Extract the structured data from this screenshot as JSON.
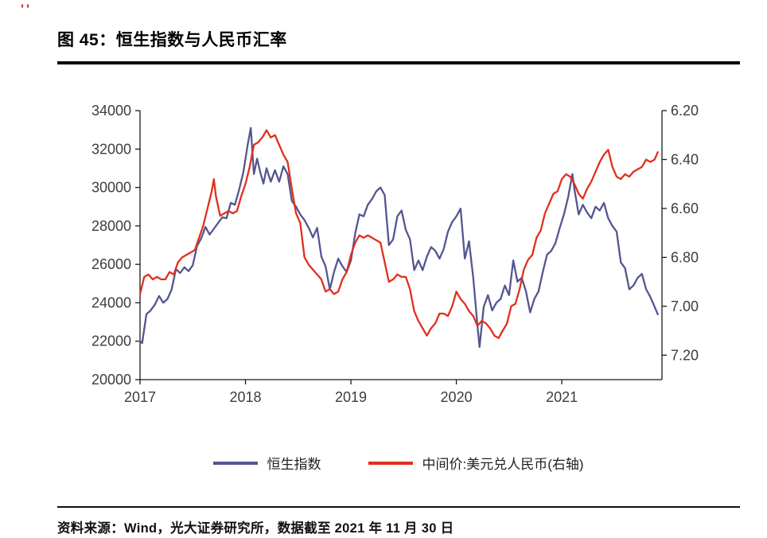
{
  "decor": {
    "top_marks": "''"
  },
  "title": "图 45：恒生指数与人民币汇率",
  "legend": {
    "series1": "恒生指数",
    "series2": "中间价:美元兑人民币(右轴)"
  },
  "source": "资料来源：Wind，光大证券研究所，数据截至 2021 年 11 月 30 日",
  "chart_data": {
    "type": "line",
    "title": "恒生指数与人民币汇率",
    "grid": false,
    "legend_position": "bottom-center",
    "style": {
      "axis_color": "#1a1a1a",
      "tick_text_color": "#3d3d3d"
    },
    "x_axis": {
      "range": [
        2017.0,
        2021.95
      ],
      "ticks": [
        2017,
        2018,
        2019,
        2020,
        2021
      ],
      "tick_labels": [
        "2017",
        "2018",
        "2019",
        "2020",
        "2021"
      ]
    },
    "y_left": {
      "label": "恒生指数",
      "range": [
        20000,
        34000
      ],
      "ticks": [
        20000,
        22000,
        24000,
        26000,
        28000,
        30000,
        32000,
        34000
      ],
      "tick_labels": [
        "20000",
        "22000",
        "24000",
        "26000",
        "28000",
        "30000",
        "32000",
        "34000"
      ]
    },
    "y_right": {
      "label": "中间价:美元兑人民币",
      "inverted": true,
      "range": [
        6.2,
        7.3
      ],
      "ticks": [
        6.2,
        6.4,
        6.6,
        6.8,
        7.0,
        7.2
      ],
      "tick_labels": [
        "6.20",
        "6.40",
        "6.60",
        "6.80",
        "7.00",
        "7.20"
      ]
    },
    "series": [
      {
        "name": "恒生指数",
        "data_name": "hsi-line-series",
        "axis": "left",
        "color": "#54568f",
        "points": [
          [
            2017.0,
            22000
          ],
          [
            2017.02,
            21900
          ],
          [
            2017.06,
            23400
          ],
          [
            2017.1,
            23600
          ],
          [
            2017.14,
            23900
          ],
          [
            2017.18,
            24350
          ],
          [
            2017.22,
            24000
          ],
          [
            2017.26,
            24200
          ],
          [
            2017.3,
            24700
          ],
          [
            2017.34,
            25750
          ],
          [
            2017.38,
            25550
          ],
          [
            2017.42,
            25850
          ],
          [
            2017.46,
            25650
          ],
          [
            2017.5,
            25950
          ],
          [
            2017.54,
            26950
          ],
          [
            2017.58,
            27350
          ],
          [
            2017.62,
            27950
          ],
          [
            2017.66,
            27550
          ],
          [
            2017.7,
            27850
          ],
          [
            2017.74,
            28150
          ],
          [
            2017.78,
            28450
          ],
          [
            2017.82,
            28400
          ],
          [
            2017.86,
            29200
          ],
          [
            2017.9,
            29100
          ],
          [
            2017.94,
            29900
          ],
          [
            2017.98,
            30800
          ],
          [
            2018.02,
            32200
          ],
          [
            2018.05,
            33100
          ],
          [
            2018.08,
            30700
          ],
          [
            2018.11,
            31500
          ],
          [
            2018.14,
            30800
          ],
          [
            2018.17,
            30200
          ],
          [
            2018.2,
            31000
          ],
          [
            2018.24,
            30300
          ],
          [
            2018.28,
            30900
          ],
          [
            2018.32,
            30300
          ],
          [
            2018.36,
            31100
          ],
          [
            2018.4,
            30700
          ],
          [
            2018.44,
            29300
          ],
          [
            2018.48,
            29000
          ],
          [
            2018.52,
            28600
          ],
          [
            2018.56,
            28300
          ],
          [
            2018.6,
            27900
          ],
          [
            2018.64,
            27400
          ],
          [
            2018.68,
            27900
          ],
          [
            2018.72,
            26400
          ],
          [
            2018.76,
            25900
          ],
          [
            2018.8,
            24700
          ],
          [
            2018.84,
            25600
          ],
          [
            2018.88,
            26300
          ],
          [
            2018.92,
            25900
          ],
          [
            2018.96,
            25600
          ],
          [
            2019.0,
            26200
          ],
          [
            2019.04,
            27600
          ],
          [
            2019.08,
            28600
          ],
          [
            2019.12,
            28500
          ],
          [
            2019.16,
            29100
          ],
          [
            2019.2,
            29400
          ],
          [
            2019.24,
            29800
          ],
          [
            2019.28,
            30000
          ],
          [
            2019.32,
            29600
          ],
          [
            2019.36,
            27000
          ],
          [
            2019.4,
            27300
          ],
          [
            2019.44,
            28500
          ],
          [
            2019.48,
            28800
          ],
          [
            2019.52,
            27800
          ],
          [
            2019.56,
            27300
          ],
          [
            2019.6,
            25700
          ],
          [
            2019.64,
            26200
          ],
          [
            2019.68,
            25700
          ],
          [
            2019.72,
            26400
          ],
          [
            2019.76,
            26900
          ],
          [
            2019.8,
            26700
          ],
          [
            2019.84,
            26300
          ],
          [
            2019.88,
            26800
          ],
          [
            2019.92,
            27700
          ],
          [
            2019.96,
            28200
          ],
          [
            2020.0,
            28500
          ],
          [
            2020.04,
            28900
          ],
          [
            2020.08,
            26300
          ],
          [
            2020.12,
            27200
          ],
          [
            2020.16,
            25300
          ],
          [
            2020.2,
            22800
          ],
          [
            2020.22,
            21700
          ],
          [
            2020.26,
            23800
          ],
          [
            2020.3,
            24400
          ],
          [
            2020.34,
            23600
          ],
          [
            2020.38,
            24000
          ],
          [
            2020.42,
            24200
          ],
          [
            2020.46,
            24900
          ],
          [
            2020.5,
            24400
          ],
          [
            2020.54,
            26200
          ],
          [
            2020.58,
            25100
          ],
          [
            2020.62,
            25300
          ],
          [
            2020.66,
            24600
          ],
          [
            2020.7,
            23500
          ],
          [
            2020.74,
            24200
          ],
          [
            2020.78,
            24600
          ],
          [
            2020.82,
            25600
          ],
          [
            2020.86,
            26500
          ],
          [
            2020.9,
            26700
          ],
          [
            2020.94,
            27100
          ],
          [
            2020.98,
            27900
          ],
          [
            2021.02,
            28600
          ],
          [
            2021.06,
            29500
          ],
          [
            2021.1,
            30700
          ],
          [
            2021.12,
            29900
          ],
          [
            2021.16,
            28600
          ],
          [
            2021.2,
            29100
          ],
          [
            2021.24,
            28700
          ],
          [
            2021.28,
            28400
          ],
          [
            2021.32,
            29000
          ],
          [
            2021.36,
            28800
          ],
          [
            2021.4,
            29200
          ],
          [
            2021.44,
            28400
          ],
          [
            2021.48,
            28000
          ],
          [
            2021.52,
            27700
          ],
          [
            2021.56,
            26100
          ],
          [
            2021.6,
            25800
          ],
          [
            2021.64,
            24700
          ],
          [
            2021.68,
            24900
          ],
          [
            2021.72,
            25300
          ],
          [
            2021.76,
            25500
          ],
          [
            2021.8,
            24700
          ],
          [
            2021.84,
            24300
          ],
          [
            2021.88,
            23800
          ],
          [
            2021.91,
            23400
          ]
        ]
      },
      {
        "name": "中间价:美元兑人民币(右轴)",
        "data_name": "usdcny-line-series",
        "axis": "right",
        "color": "#e0301e",
        "points": [
          [
            2017.0,
            6.95
          ],
          [
            2017.04,
            6.88
          ],
          [
            2017.08,
            6.87
          ],
          [
            2017.12,
            6.89
          ],
          [
            2017.16,
            6.88
          ],
          [
            2017.2,
            6.89
          ],
          [
            2017.24,
            6.89
          ],
          [
            2017.28,
            6.86
          ],
          [
            2017.32,
            6.87
          ],
          [
            2017.36,
            6.82
          ],
          [
            2017.4,
            6.8
          ],
          [
            2017.44,
            6.79
          ],
          [
            2017.48,
            6.78
          ],
          [
            2017.52,
            6.77
          ],
          [
            2017.56,
            6.72
          ],
          [
            2017.6,
            6.67
          ],
          [
            2017.64,
            6.6
          ],
          [
            2017.68,
            6.53
          ],
          [
            2017.7,
            6.48
          ],
          [
            2017.72,
            6.55
          ],
          [
            2017.76,
            6.63
          ],
          [
            2017.8,
            6.62
          ],
          [
            2017.84,
            6.61
          ],
          [
            2017.88,
            6.62
          ],
          [
            2017.92,
            6.61
          ],
          [
            2017.96,
            6.55
          ],
          [
            2018.0,
            6.5
          ],
          [
            2018.04,
            6.43
          ],
          [
            2018.08,
            6.34
          ],
          [
            2018.12,
            6.33
          ],
          [
            2018.16,
            6.31
          ],
          [
            2018.2,
            6.28
          ],
          [
            2018.24,
            6.31
          ],
          [
            2018.28,
            6.3
          ],
          [
            2018.32,
            6.34
          ],
          [
            2018.36,
            6.38
          ],
          [
            2018.4,
            6.41
          ],
          [
            2018.44,
            6.52
          ],
          [
            2018.48,
            6.62
          ],
          [
            2018.52,
            6.66
          ],
          [
            2018.56,
            6.8
          ],
          [
            2018.6,
            6.83
          ],
          [
            2018.64,
            6.85
          ],
          [
            2018.68,
            6.87
          ],
          [
            2018.72,
            6.89
          ],
          [
            2018.76,
            6.94
          ],
          [
            2018.8,
            6.93
          ],
          [
            2018.84,
            6.95
          ],
          [
            2018.88,
            6.94
          ],
          [
            2018.92,
            6.89
          ],
          [
            2018.96,
            6.86
          ],
          [
            2019.0,
            6.79
          ],
          [
            2019.04,
            6.74
          ],
          [
            2019.08,
            6.71
          ],
          [
            2019.12,
            6.72
          ],
          [
            2019.16,
            6.71
          ],
          [
            2019.2,
            6.72
          ],
          [
            2019.24,
            6.73
          ],
          [
            2019.28,
            6.74
          ],
          [
            2019.32,
            6.82
          ],
          [
            2019.36,
            6.9
          ],
          [
            2019.4,
            6.89
          ],
          [
            2019.44,
            6.87
          ],
          [
            2019.48,
            6.88
          ],
          [
            2019.52,
            6.88
          ],
          [
            2019.56,
            6.93
          ],
          [
            2019.6,
            7.02
          ],
          [
            2019.64,
            7.06
          ],
          [
            2019.68,
            7.09
          ],
          [
            2019.72,
            7.12
          ],
          [
            2019.76,
            7.09
          ],
          [
            2019.8,
            7.07
          ],
          [
            2019.84,
            7.03
          ],
          [
            2019.88,
            7.03
          ],
          [
            2019.92,
            7.04
          ],
          [
            2019.96,
            7.0
          ],
          [
            2020.0,
            6.94
          ],
          [
            2020.04,
            6.97
          ],
          [
            2020.08,
            6.99
          ],
          [
            2020.12,
            7.02
          ],
          [
            2020.16,
            7.04
          ],
          [
            2020.2,
            7.08
          ],
          [
            2020.24,
            7.06
          ],
          [
            2020.28,
            7.07
          ],
          [
            2020.32,
            7.09
          ],
          [
            2020.36,
            7.12
          ],
          [
            2020.4,
            7.13
          ],
          [
            2020.44,
            7.1
          ],
          [
            2020.48,
            7.07
          ],
          [
            2020.52,
            7.0
          ],
          [
            2020.56,
            6.99
          ],
          [
            2020.6,
            6.93
          ],
          [
            2020.64,
            6.85
          ],
          [
            2020.68,
            6.81
          ],
          [
            2020.72,
            6.79
          ],
          [
            2020.76,
            6.72
          ],
          [
            2020.8,
            6.69
          ],
          [
            2020.84,
            6.62
          ],
          [
            2020.88,
            6.58
          ],
          [
            2020.92,
            6.54
          ],
          [
            2020.96,
            6.53
          ],
          [
            2021.0,
            6.48
          ],
          [
            2021.04,
            6.46
          ],
          [
            2021.08,
            6.47
          ],
          [
            2021.12,
            6.5
          ],
          [
            2021.16,
            6.54
          ],
          [
            2021.2,
            6.56
          ],
          [
            2021.24,
            6.52
          ],
          [
            2021.28,
            6.49
          ],
          [
            2021.32,
            6.45
          ],
          [
            2021.36,
            6.41
          ],
          [
            2021.4,
            6.38
          ],
          [
            2021.44,
            6.36
          ],
          [
            2021.48,
            6.43
          ],
          [
            2021.52,
            6.47
          ],
          [
            2021.56,
            6.48
          ],
          [
            2021.6,
            6.46
          ],
          [
            2021.64,
            6.47
          ],
          [
            2021.68,
            6.45
          ],
          [
            2021.72,
            6.44
          ],
          [
            2021.76,
            6.43
          ],
          [
            2021.8,
            6.4
          ],
          [
            2021.84,
            6.41
          ],
          [
            2021.88,
            6.4
          ],
          [
            2021.91,
            6.37
          ]
        ]
      }
    ]
  }
}
